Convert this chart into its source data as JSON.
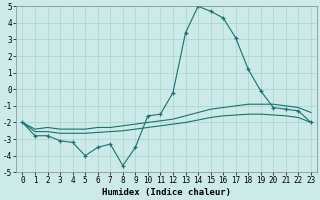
{
  "xlabel": "Humidex (Indice chaleur)",
  "x": [
    0,
    1,
    2,
    3,
    4,
    5,
    6,
    7,
    8,
    9,
    10,
    11,
    12,
    13,
    14,
    15,
    16,
    17,
    18,
    19,
    20,
    21,
    22,
    23
  ],
  "line_main": [
    -2.0,
    -2.8,
    -2.8,
    -3.1,
    -3.2,
    -4.0,
    -3.5,
    -3.3,
    -4.6,
    -3.5,
    -1.6,
    -1.5,
    -0.2,
    3.4,
    5.0,
    4.7,
    4.3,
    3.1,
    1.2,
    -0.1,
    -1.1,
    -1.2,
    -1.3,
    -2.0
  ],
  "line_upper": [
    -2.0,
    -2.4,
    -2.3,
    -2.4,
    -2.4,
    -2.4,
    -2.3,
    -2.3,
    -2.2,
    -2.1,
    -2.0,
    -1.9,
    -1.8,
    -1.6,
    -1.4,
    -1.2,
    -1.1,
    -1.0,
    -0.9,
    -0.9,
    -0.9,
    -1.0,
    -1.1,
    -1.4
  ],
  "line_lower": [
    -2.0,
    -2.55,
    -2.55,
    -2.65,
    -2.65,
    -2.65,
    -2.6,
    -2.55,
    -2.5,
    -2.4,
    -2.3,
    -2.2,
    -2.1,
    -2.0,
    -1.85,
    -1.7,
    -1.6,
    -1.55,
    -1.5,
    -1.5,
    -1.55,
    -1.6,
    -1.7,
    -2.0
  ],
  "color": "#1a7070",
  "bg_color": "#cceae8",
  "grid_color": "#aad4d0",
  "ylim": [
    -5,
    5
  ],
  "yticks": [
    -5,
    -4,
    -3,
    -2,
    -1,
    0,
    1,
    2,
    3,
    4,
    5
  ],
  "xticks": [
    0,
    1,
    2,
    3,
    4,
    5,
    6,
    7,
    8,
    9,
    10,
    11,
    12,
    13,
    14,
    15,
    16,
    17,
    18,
    19,
    20,
    21,
    22,
    23
  ],
  "tick_fontsize": 5.5,
  "label_fontsize": 6.5
}
